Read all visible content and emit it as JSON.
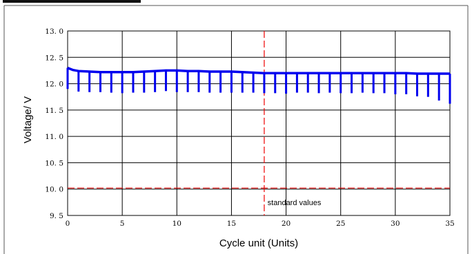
{
  "chart_data": {
    "type": "line",
    "title": "",
    "xlabel": "Cycle unit (Units)",
    "ylabel": "Voltage/ V",
    "xlim": [
      0,
      35
    ],
    "ylim": [
      9.5,
      13.0
    ],
    "x_ticks": [
      "0",
      "5",
      "10",
      "15",
      "20",
      "25",
      "30",
      "35"
    ],
    "y_ticks": [
      "9. 5",
      "10. 0",
      "10. 5",
      "11. 0",
      "11. 5",
      "12. 0",
      "12. 5",
      "13. 0"
    ],
    "grid": true,
    "series": [
      {
        "color": "#0000ee",
        "x": [
          0,
          0.5,
          1,
          2,
          3,
          4,
          5,
          6,
          7,
          8,
          9,
          10,
          11,
          12,
          13,
          14,
          15,
          16,
          17,
          18,
          19,
          20,
          21,
          22,
          23,
          24,
          25,
          26,
          27,
          28,
          29,
          30,
          31,
          32,
          33,
          34,
          35
        ],
        "values": [
          12.3,
          12.26,
          12.24,
          12.23,
          12.22,
          12.22,
          12.22,
          12.22,
          12.23,
          12.24,
          12.25,
          12.25,
          12.24,
          12.24,
          12.23,
          12.23,
          12.23,
          12.22,
          12.21,
          12.2,
          12.2,
          12.2,
          12.2,
          12.2,
          12.2,
          12.2,
          12.2,
          12.2,
          12.2,
          12.2,
          12.2,
          12.2,
          12.2,
          12.19,
          12.19,
          12.19,
          12.19
        ],
        "dip_x": [
          0,
          1,
          2,
          3,
          4,
          5,
          6,
          7,
          8,
          9,
          10,
          11,
          12,
          13,
          14,
          15,
          16,
          17,
          18,
          19,
          20,
          21,
          22,
          23,
          24,
          25,
          26,
          27,
          28,
          29,
          30,
          31,
          32,
          33,
          34,
          35
        ],
        "dip_min": [
          11.9,
          11.85,
          11.84,
          11.84,
          11.83,
          11.82,
          11.83,
          11.83,
          11.84,
          11.86,
          11.84,
          11.84,
          11.84,
          11.83,
          11.83,
          11.83,
          11.83,
          11.83,
          11.82,
          11.82,
          11.81,
          11.83,
          11.83,
          11.82,
          11.83,
          11.82,
          11.82,
          11.83,
          11.82,
          11.82,
          11.8,
          11.8,
          11.76,
          11.75,
          11.68,
          11.62
        ]
      }
    ],
    "reference_lines": [
      {
        "orientation": "horizontal",
        "value": 10.02,
        "color": "#ee0000",
        "style": "dashed"
      },
      {
        "orientation": "vertical",
        "value": 18,
        "color": "#ee0000",
        "style": "dashed"
      }
    ],
    "annotation": {
      "text": "standard values",
      "x": 18.3,
      "y": 9.75
    }
  }
}
